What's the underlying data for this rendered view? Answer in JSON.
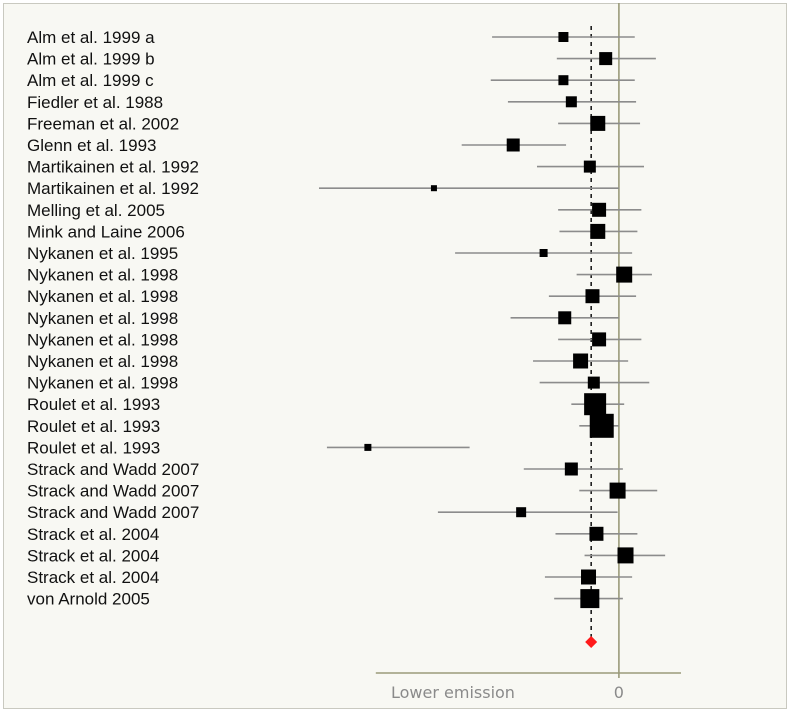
{
  "chart_data": {
    "type": "forest",
    "xlabel": "Lower emission",
    "zero_tick_label": "0",
    "reference_value": 0,
    "xlim": [
      -2.27,
      0.47
    ],
    "axis_range": [
      -1.84,
      0.47
    ],
    "colors": {
      "ci_line": "#8c8c8c",
      "marker": "#000000",
      "pooled_estimate": "#ff1a1a",
      "reference_line": "#9a9a7a",
      "pooled_dashed_line": "#000000"
    },
    "studies": [
      {
        "label": "Alm et al. 1999 a",
        "estimate": -0.42,
        "lower": -0.96,
        "upper": 0.12,
        "weight": 0.3
      },
      {
        "label": "Alm et al. 1999 b",
        "estimate": -0.1,
        "lower": -0.47,
        "upper": 0.28,
        "weight": 0.45
      },
      {
        "label": "Alm et al. 1999 c",
        "estimate": -0.42,
        "lower": -0.97,
        "upper": 0.12,
        "weight": 0.3
      },
      {
        "label": "Fiedler et al. 1988",
        "estimate": -0.36,
        "lower": -0.84,
        "upper": 0.13,
        "weight": 0.35
      },
      {
        "label": "Freeman et al. 2002",
        "estimate": -0.16,
        "lower": -0.46,
        "upper": 0.16,
        "weight": 0.55
      },
      {
        "label": "Glenn et al. 1993",
        "estimate": -0.8,
        "lower": -1.19,
        "upper": -0.4,
        "weight": 0.45
      },
      {
        "label": "Martikainen et al. 1992",
        "estimate": -0.22,
        "lower": -0.62,
        "upper": 0.19,
        "weight": 0.4
      },
      {
        "label": "Martikainen et al. 1992",
        "estimate": -1.4,
        "lower": -2.27,
        "upper": 0.0,
        "weight": 0.1
      },
      {
        "label": "Melling et al. 2005",
        "estimate": -0.15,
        "lower": -0.46,
        "upper": 0.17,
        "weight": 0.5
      },
      {
        "label": "Mink and Laine 2006",
        "estimate": -0.16,
        "lower": -0.45,
        "upper": 0.14,
        "weight": 0.55
      },
      {
        "label": "Nykanen et al. 1995",
        "estimate": -0.57,
        "lower": -1.24,
        "upper": 0.1,
        "weight": 0.2
      },
      {
        "label": "Nykanen et al. 1998",
        "estimate": 0.04,
        "lower": -0.32,
        "upper": 0.25,
        "weight": 0.6
      },
      {
        "label": "Nykanen et al. 1998",
        "estimate": -0.2,
        "lower": -0.53,
        "upper": 0.13,
        "weight": 0.5
      },
      {
        "label": "Nykanen et al. 1998",
        "estimate": -0.41,
        "lower": -0.82,
        "upper": 0.0,
        "weight": 0.45
      },
      {
        "label": "Nykanen et al. 1998",
        "estimate": -0.15,
        "lower": -0.46,
        "upper": 0.17,
        "weight": 0.5
      },
      {
        "label": "Nykanen et al. 1998",
        "estimate": -0.29,
        "lower": -0.65,
        "upper": 0.07,
        "weight": 0.55
      },
      {
        "label": "Nykanen et al. 1998",
        "estimate": -0.19,
        "lower": -0.6,
        "upper": 0.23,
        "weight": 0.4
      },
      {
        "label": "Roulet et al. 1993",
        "estimate": -0.18,
        "lower": -0.36,
        "upper": 0.04,
        "weight": 0.9
      },
      {
        "label": "Roulet et al. 1993",
        "estimate": -0.13,
        "lower": -0.3,
        "upper": 0.0,
        "weight": 1.0
      },
      {
        "label": "Roulet et al. 1993",
        "estimate": -1.9,
        "lower": -2.21,
        "upper": -1.13,
        "weight": 0.15
      },
      {
        "label": "Strack and Wadd 2007",
        "estimate": -0.36,
        "lower": -0.72,
        "upper": 0.03,
        "weight": 0.45
      },
      {
        "label": "Strack and Wadd 2007",
        "estimate": -0.01,
        "lower": -0.3,
        "upper": 0.29,
        "weight": 0.6
      },
      {
        "label": "Strack and Wadd 2007",
        "estimate": -0.74,
        "lower": -1.37,
        "upper": -0.01,
        "weight": 0.3
      },
      {
        "label": "Strack et al. 2004",
        "estimate": -0.17,
        "lower": -0.48,
        "upper": 0.14,
        "weight": 0.5
      },
      {
        "label": "Strack et al. 2004",
        "estimate": 0.05,
        "lower": -0.26,
        "upper": 0.35,
        "weight": 0.6
      },
      {
        "label": "Strack et al. 2004",
        "estimate": -0.23,
        "lower": -0.56,
        "upper": 0.1,
        "weight": 0.55
      },
      {
        "label": "von Arnold 2005",
        "estimate": -0.22,
        "lower": -0.49,
        "upper": 0.03,
        "weight": 0.75
      }
    ],
    "pooled": {
      "estimate": -0.21
    }
  }
}
